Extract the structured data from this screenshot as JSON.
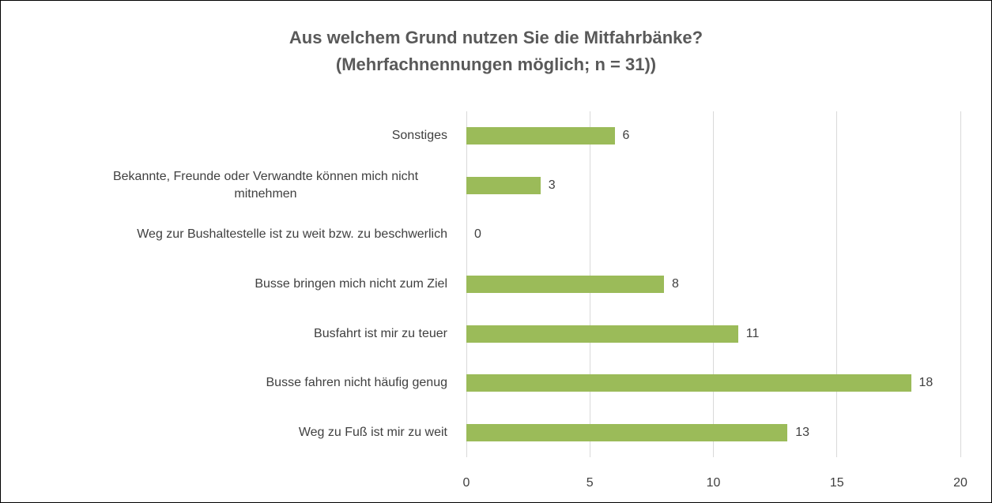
{
  "chart_data": {
    "type": "bar",
    "orientation": "horizontal",
    "title": [
      "Aus welchem Grund nutzen Sie die Mitfahrbänke?",
      "(Mehrfachnennungen möglich; n = 31))"
    ],
    "categories": [
      "Sonstiges",
      "Bekannte, Freunde oder Verwandte können mich nicht mitnehmen",
      "Weg zur Bushaltestelle ist zu weit bzw. zu beschwerlich",
      "Busse bringen mich nicht zum Ziel",
      "Busfahrt ist mir zu teuer",
      "Busse fahren nicht häufig genug",
      "Weg zu Fuß ist mir zu weit"
    ],
    "values": [
      6,
      3,
      0,
      8,
      11,
      18,
      13
    ],
    "color": "#9bbb59",
    "xlim": [
      0,
      20
    ],
    "xticks": [
      0,
      5,
      10,
      15,
      20
    ],
    "grid": true
  }
}
